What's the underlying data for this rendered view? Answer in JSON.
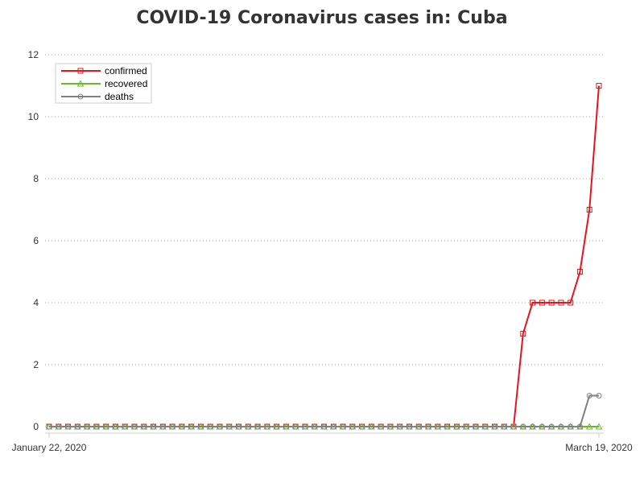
{
  "chart_data": {
    "type": "line",
    "title": "COVID-19 Coronavirus cases in: Cuba",
    "xlabel": "",
    "ylabel": "",
    "x_start_label": "January 22, 2020",
    "x_end_label": "March 19, 2020",
    "ylim": [
      0,
      12
    ],
    "yticks": [
      0,
      2,
      4,
      6,
      8,
      10,
      12
    ],
    "grid": "horizontal dotted",
    "legend_position": "top-left",
    "series": [
      {
        "name": "confirmed",
        "color": "#e8141c",
        "marker": "square",
        "values": [
          0,
          0,
          0,
          0,
          0,
          0,
          0,
          0,
          0,
          0,
          0,
          0,
          0,
          0,
          0,
          0,
          0,
          0,
          0,
          0,
          0,
          0,
          0,
          0,
          0,
          0,
          0,
          0,
          0,
          0,
          0,
          0,
          0,
          0,
          0,
          0,
          0,
          0,
          0,
          0,
          0,
          0,
          0,
          0,
          0,
          0,
          0,
          0,
          0,
          0,
          3,
          4,
          4,
          4,
          4,
          4,
          5,
          7,
          11
        ]
      },
      {
        "name": "recovered",
        "color": "#6cb82a",
        "marker": "triangle",
        "values": [
          0,
          0,
          0,
          0,
          0,
          0,
          0,
          0,
          0,
          0,
          0,
          0,
          0,
          0,
          0,
          0,
          0,
          0,
          0,
          0,
          0,
          0,
          0,
          0,
          0,
          0,
          0,
          0,
          0,
          0,
          0,
          0,
          0,
          0,
          0,
          0,
          0,
          0,
          0,
          0,
          0,
          0,
          0,
          0,
          0,
          0,
          0,
          0,
          0,
          0,
          0,
          0,
          0,
          0,
          0,
          0,
          0,
          0,
          0
        ]
      },
      {
        "name": "deaths",
        "color": "#808080",
        "marker": "circle",
        "values": [
          0,
          0,
          0,
          0,
          0,
          0,
          0,
          0,
          0,
          0,
          0,
          0,
          0,
          0,
          0,
          0,
          0,
          0,
          0,
          0,
          0,
          0,
          0,
          0,
          0,
          0,
          0,
          0,
          0,
          0,
          0,
          0,
          0,
          0,
          0,
          0,
          0,
          0,
          0,
          0,
          0,
          0,
          0,
          0,
          0,
          0,
          0,
          0,
          0,
          0,
          0,
          0,
          0,
          0,
          0,
          0,
          0,
          1,
          1
        ]
      }
    ]
  }
}
